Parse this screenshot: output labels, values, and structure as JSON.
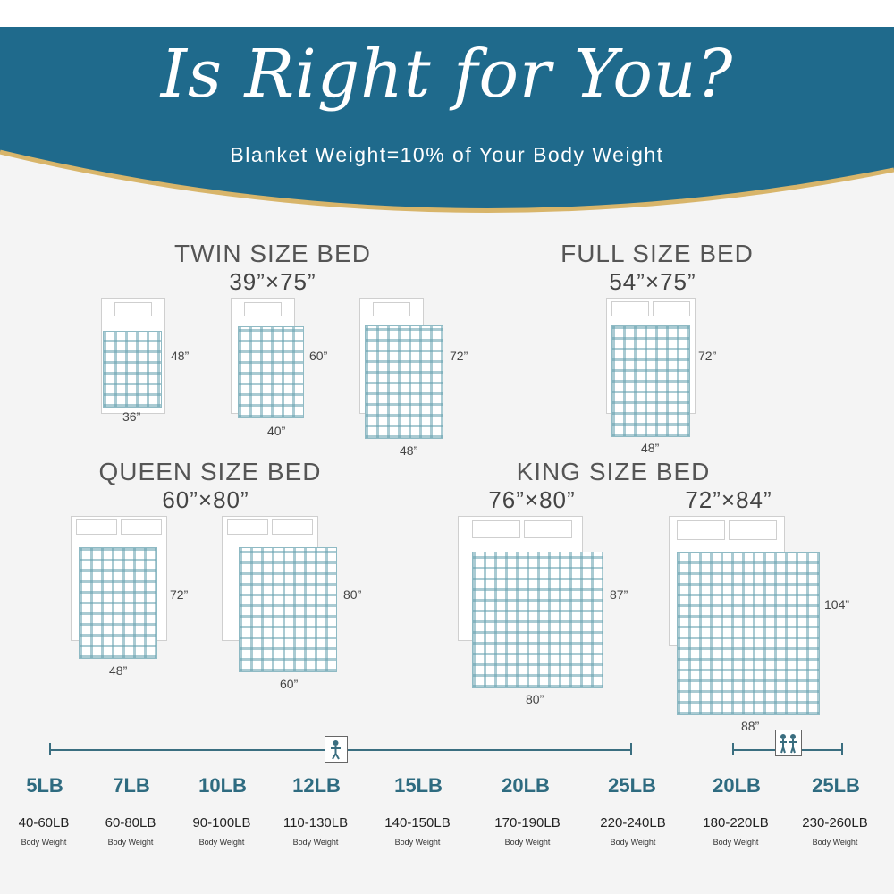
{
  "header": {
    "title": "Is Right for You?",
    "subtitle": "Blanket Weight=10% of Your Body Weight",
    "band_color": "#1f6a8c",
    "gold_color": "#d8b56a"
  },
  "beds": {
    "twin": {
      "title": "TWIN SIZE BED",
      "dims": "39”×75”",
      "options": [
        {
          "width": "36”",
          "length": "48”"
        },
        {
          "width": "40”",
          "length": "60”"
        },
        {
          "width": "48”",
          "length": "72”"
        }
      ]
    },
    "full": {
      "title": "FULL SIZE BED",
      "dims": "54”×75”",
      "options": [
        {
          "width": "48”",
          "length": "72”"
        }
      ]
    },
    "queen": {
      "title": "QUEEN SIZE BED",
      "dims": "60”×80”",
      "options": [
        {
          "width": "48”",
          "length": "72”"
        },
        {
          "width": "60”",
          "length": "80”"
        }
      ]
    },
    "king": {
      "title": "KING SIZE BED",
      "dims_a": "76”×80”",
      "dims_b": "72”×84”",
      "options": [
        {
          "width": "80”",
          "length": "87”"
        },
        {
          "width": "88”",
          "length": "104”"
        }
      ]
    }
  },
  "scale": {
    "single_icon": "single-person-icon",
    "double_icon": "two-person-icon",
    "accent_color": "#2e6b80",
    "items": [
      {
        "weight": "5LB",
        "range": "40-60LB",
        "caption": "Body Weight"
      },
      {
        "weight": "7LB",
        "range": "60-80LB",
        "caption": "Body Weight"
      },
      {
        "weight": "10LB",
        "range": "90-100LB",
        "caption": "Body Weight"
      },
      {
        "weight": "12LB",
        "range": "110-130LB",
        "caption": "Body Weight"
      },
      {
        "weight": "15LB",
        "range": "140-150LB",
        "caption": "Body Weight"
      },
      {
        "weight": "20LB",
        "range": "170-190LB",
        "caption": "Body Weight"
      },
      {
        "weight": "25LB",
        "range": "220-240LB",
        "caption": "Body Weight"
      },
      {
        "weight": "20LB",
        "range": "180-220LB",
        "caption": "Body Weight"
      },
      {
        "weight": "25LB",
        "range": "230-260LB",
        "caption": "Body Weight"
      }
    ]
  }
}
